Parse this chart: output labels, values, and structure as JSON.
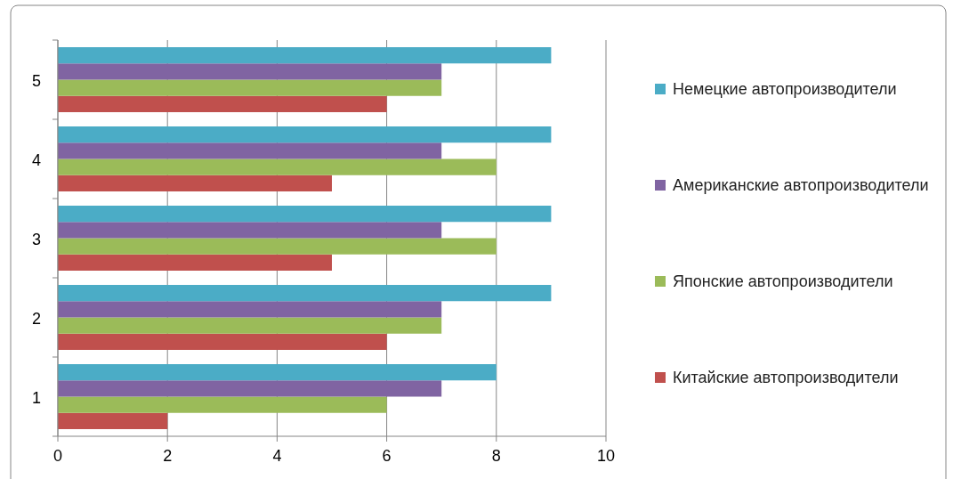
{
  "chart_data": {
    "type": "bar",
    "orientation": "horizontal",
    "categories": [
      "5",
      "4",
      "3",
      "2",
      "1"
    ],
    "series": [
      {
        "name": "Китайские автопроизводители",
        "color": "#c0504d",
        "values": [
          6,
          5,
          5,
          6,
          2
        ]
      },
      {
        "name": "Японские автопроизводители",
        "color": "#9bbb59",
        "values": [
          7,
          8,
          8,
          7,
          6
        ]
      },
      {
        "name": "Американские автопроизводители",
        "color": "#8064a2",
        "values": [
          7,
          7,
          7,
          7,
          7
        ]
      },
      {
        "name": "Немецкие автопроизводители",
        "color": "#4bacc6",
        "values": [
          9,
          9,
          9,
          9,
          8
        ]
      }
    ],
    "xlim": [
      0,
      10
    ],
    "xticks": [
      0,
      2,
      4,
      6,
      8,
      10
    ],
    "grid": "x",
    "legend": "right"
  }
}
